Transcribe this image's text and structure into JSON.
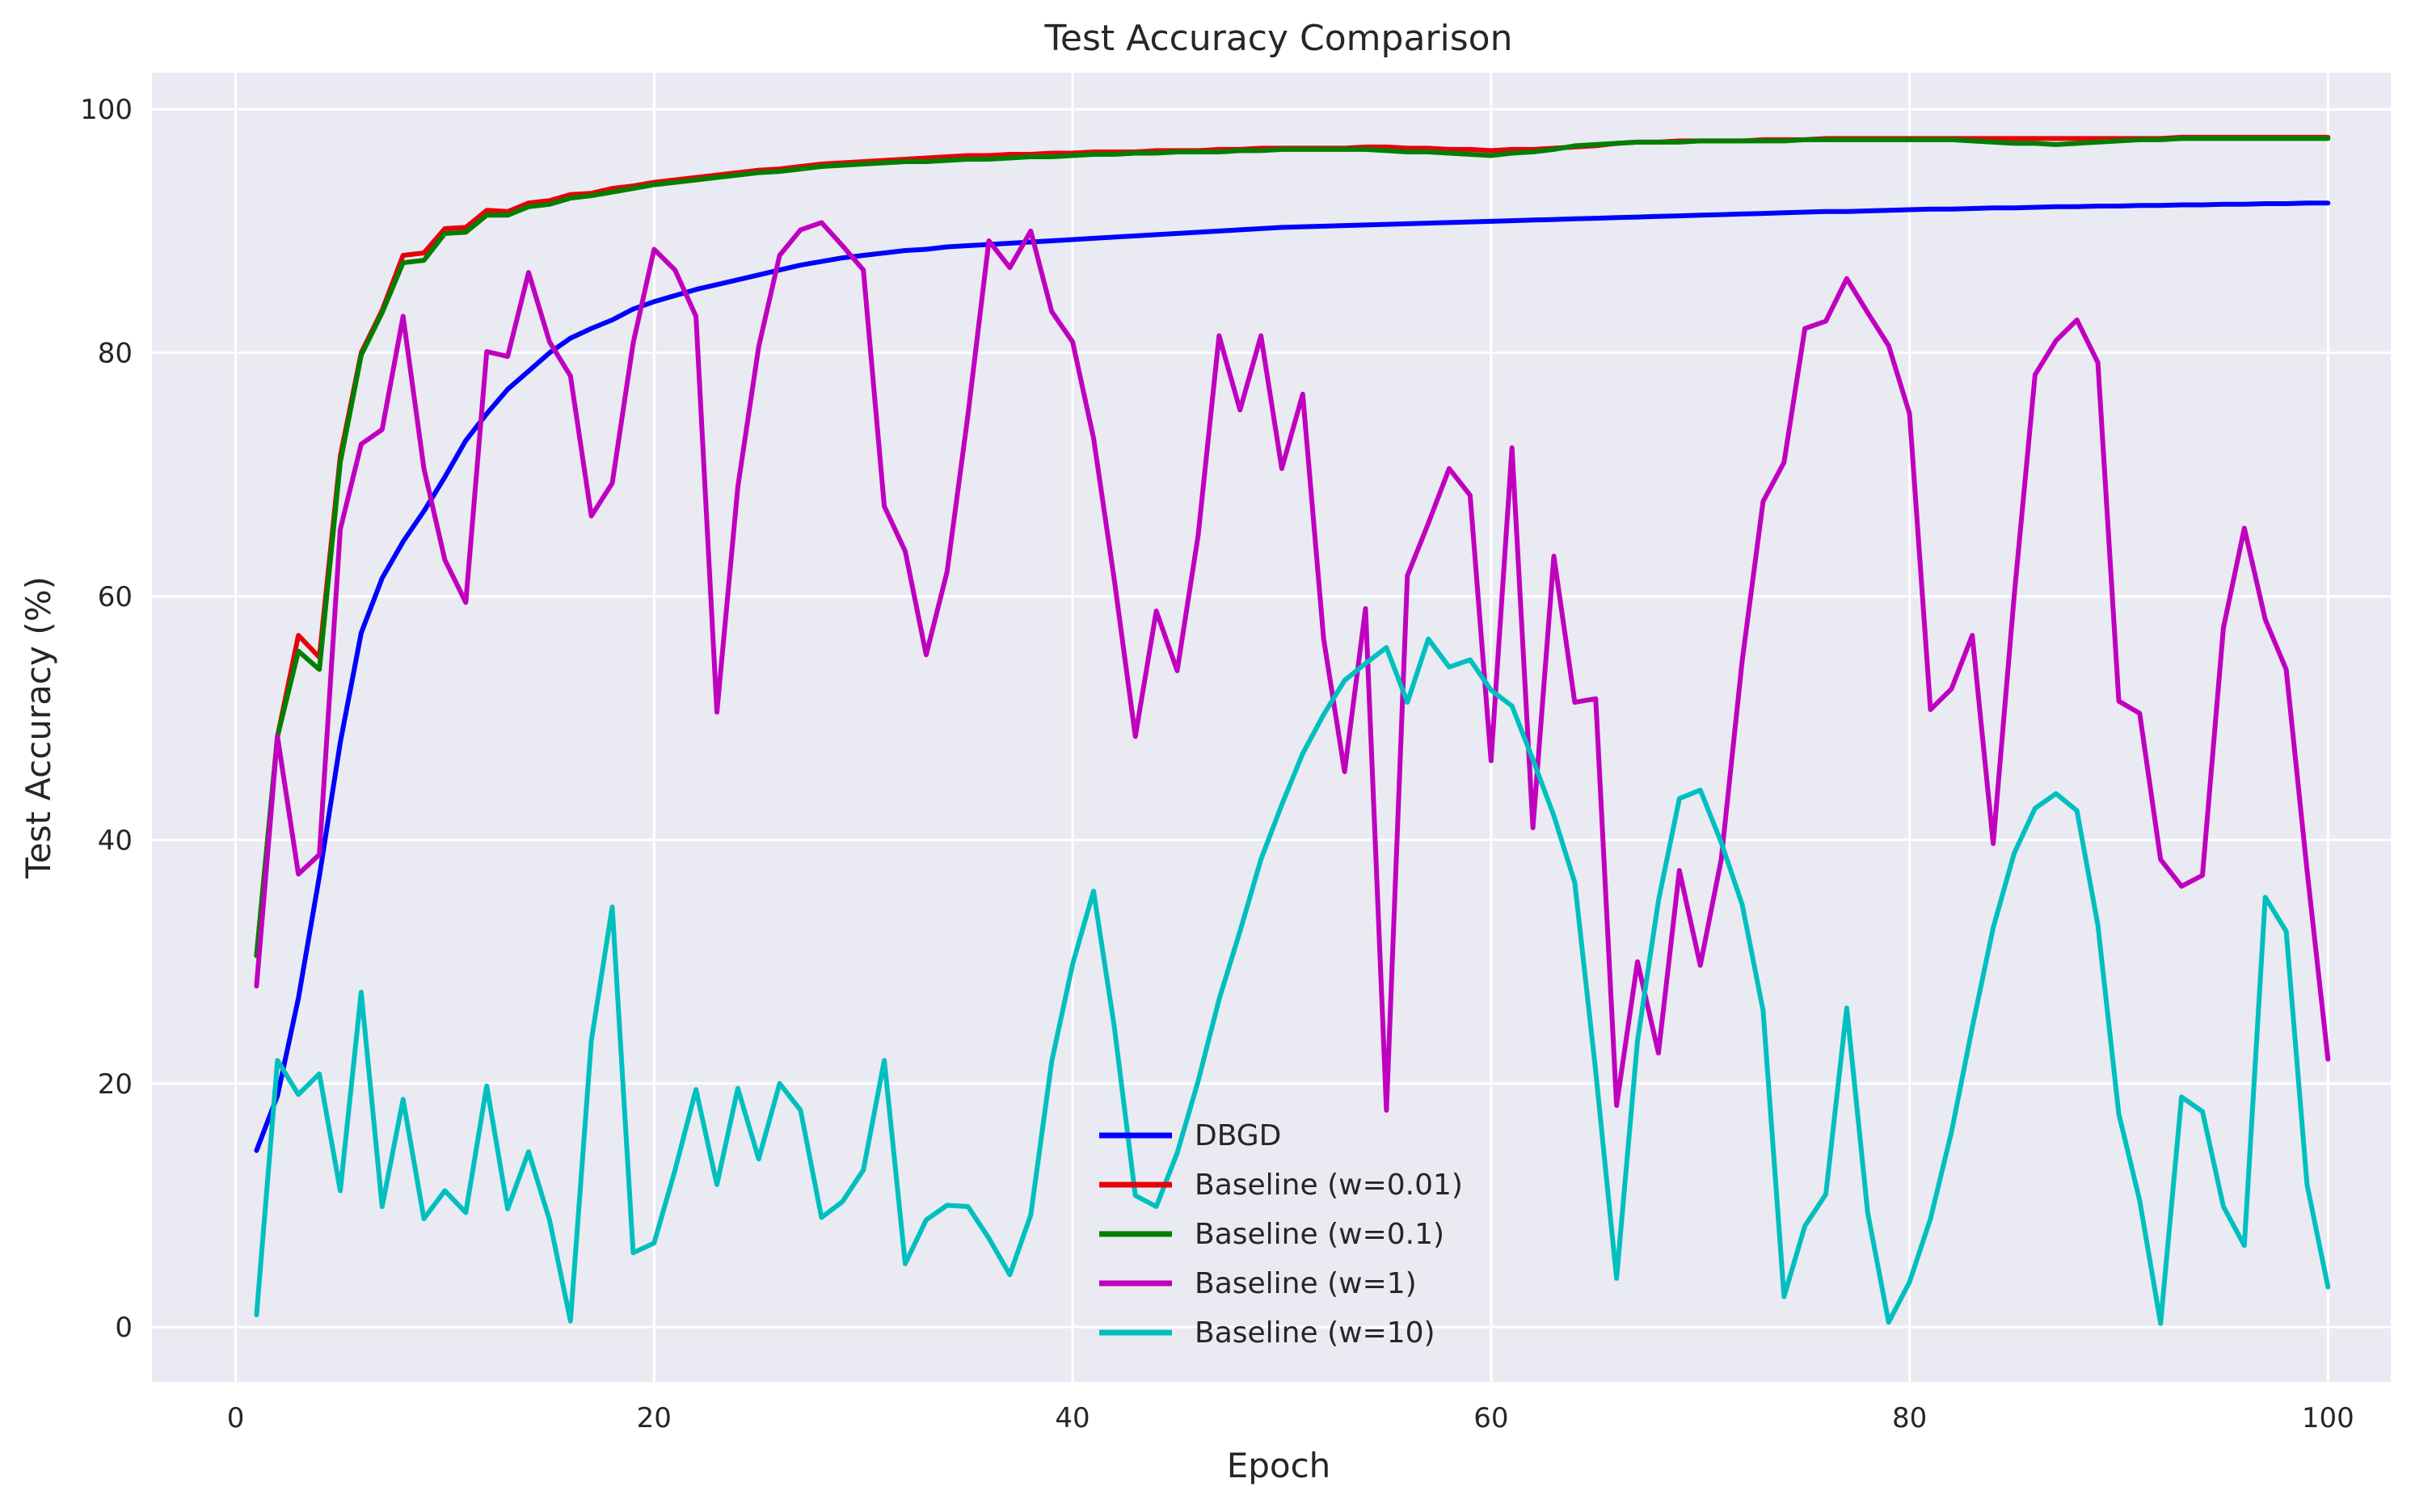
{
  "chart_data": {
    "type": "line",
    "title": "Test Accuracy Comparison",
    "xlabel": "Epoch",
    "ylabel": "Test Accuracy (%)",
    "xlim": [
      -4,
      103
    ],
    "ylim": [
      -4.5,
      103
    ],
    "xticks": [
      0,
      20,
      40,
      60,
      80,
      100
    ],
    "yticks": [
      0,
      20,
      40,
      60,
      80,
      100
    ],
    "xtick_labels": [
      "0",
      "20",
      "40",
      "60",
      "80",
      "100"
    ],
    "ytick_labels": [
      "0",
      "20",
      "40",
      "60",
      "80",
      "100"
    ],
    "grid": true,
    "background": "#EAEAF2",
    "legend_position": "lower center",
    "x": [
      1,
      2,
      3,
      4,
      5,
      6,
      7,
      8,
      9,
      10,
      11,
      12,
      13,
      14,
      15,
      16,
      17,
      18,
      19,
      20,
      21,
      22,
      23,
      24,
      25,
      26,
      27,
      28,
      29,
      30,
      31,
      32,
      33,
      34,
      35,
      36,
      37,
      38,
      39,
      40,
      41,
      42,
      43,
      44,
      45,
      46,
      47,
      48,
      49,
      50,
      51,
      52,
      53,
      54,
      55,
      56,
      57,
      58,
      59,
      60,
      61,
      62,
      63,
      64,
      65,
      66,
      67,
      68,
      69,
      70,
      71,
      72,
      73,
      74,
      75,
      76,
      77,
      78,
      79,
      80,
      81,
      82,
      83,
      84,
      85,
      86,
      87,
      88,
      89,
      90,
      91,
      92,
      93,
      94,
      95,
      96,
      97,
      98,
      99,
      100
    ],
    "series": [
      {
        "name": "DBGD",
        "color": "#0000FF",
        "values": [
          14.5,
          19,
          27,
          37,
          48,
          57,
          61.5,
          64.5,
          67,
          69.8,
          72.8,
          75,
          77,
          78.5,
          80,
          81.2,
          82,
          82.7,
          83.6,
          84.2,
          84.7,
          85.2,
          85.6,
          86,
          86.4,
          86.8,
          87.2,
          87.5,
          87.8,
          88,
          88.2,
          88.4,
          88.5,
          88.7,
          88.8,
          88.9,
          89,
          89.1,
          89.2,
          89.3,
          89.4,
          89.5,
          89.6,
          89.7,
          89.8,
          89.9,
          90,
          90.1,
          90.2,
          90.3,
          90.35,
          90.4,
          90.45,
          90.5,
          90.55,
          90.6,
          90.65,
          90.7,
          90.75,
          90.8,
          90.85,
          90.9,
          90.95,
          91,
          91.05,
          91.1,
          91.15,
          91.2,
          91.25,
          91.3,
          91.35,
          91.4,
          91.45,
          91.5,
          91.55,
          91.6,
          91.6,
          91.65,
          91.7,
          91.75,
          91.8,
          91.8,
          91.85,
          91.9,
          91.9,
          91.95,
          92,
          92,
          92.05,
          92.05,
          92.1,
          92.1,
          92.15,
          92.15,
          92.2,
          92.2,
          92.25,
          92.25,
          92.3,
          92.3
        ]
      },
      {
        "name": "Baseline (w=0.01)",
        "color": "#E8000B",
        "values": [
          30.5,
          48.5,
          56.8,
          55,
          71.5,
          80,
          83.5,
          88,
          88.2,
          90.2,
          90.3,
          91.7,
          91.6,
          92.3,
          92.5,
          93,
          93.1,
          93.5,
          93.7,
          94,
          94.2,
          94.4,
          94.6,
          94.8,
          95,
          95.1,
          95.3,
          95.5,
          95.6,
          95.7,
          95.8,
          95.9,
          96,
          96.1,
          96.2,
          96.2,
          96.3,
          96.3,
          96.4,
          96.4,
          96.5,
          96.5,
          96.5,
          96.6,
          96.6,
          96.6,
          96.7,
          96.7,
          96.8,
          96.8,
          96.8,
          96.8,
          96.8,
          96.9,
          96.9,
          96.8,
          96.8,
          96.7,
          96.7,
          96.6,
          96.7,
          96.7,
          96.8,
          96.9,
          97,
          97.2,
          97.3,
          97.3,
          97.4,
          97.4,
          97.4,
          97.4,
          97.5,
          97.5,
          97.5,
          97.6,
          97.6,
          97.6,
          97.6,
          97.6,
          97.6,
          97.6,
          97.6,
          97.6,
          97.6,
          97.6,
          97.6,
          97.6,
          97.6,
          97.6,
          97.6,
          97.6,
          97.7,
          97.7,
          97.7,
          97.7,
          97.7,
          97.7,
          97.7,
          97.7
        ]
      },
      {
        "name": "Baseline (w=0.1)",
        "color": "#008000",
        "values": [
          30.5,
          48.5,
          55.5,
          54,
          71,
          79.8,
          83.3,
          87.4,
          87.6,
          89.8,
          89.9,
          91.3,
          91.3,
          92,
          92.2,
          92.7,
          92.9,
          93.2,
          93.5,
          93.8,
          94,
          94.2,
          94.4,
          94.6,
          94.8,
          94.9,
          95.1,
          95.3,
          95.4,
          95.5,
          95.6,
          95.7,
          95.7,
          95.8,
          95.9,
          95.9,
          96,
          96.1,
          96.1,
          96.2,
          96.3,
          96.3,
          96.4,
          96.4,
          96.5,
          96.5,
          96.5,
          96.6,
          96.6,
          96.7,
          96.7,
          96.7,
          96.7,
          96.7,
          96.6,
          96.5,
          96.5,
          96.4,
          96.3,
          96.2,
          96.4,
          96.5,
          96.7,
          97,
          97.1,
          97.2,
          97.3,
          97.3,
          97.3,
          97.4,
          97.4,
          97.4,
          97.4,
          97.4,
          97.5,
          97.5,
          97.5,
          97.5,
          97.5,
          97.5,
          97.5,
          97.5,
          97.4,
          97.3,
          97.2,
          97.2,
          97.1,
          97.2,
          97.3,
          97.4,
          97.5,
          97.5,
          97.6,
          97.6,
          97.6,
          97.6,
          97.6,
          97.6,
          97.6,
          97.6
        ]
      },
      {
        "name": "Baseline (w=1)",
        "color": "#BF00BF",
        "values": [
          28,
          48.5,
          37.2,
          38.8,
          65.5,
          72.5,
          73.7,
          83,
          70.5,
          63,
          59.5,
          80.1,
          79.7,
          86.6,
          80.9,
          78.1,
          66.6,
          69.3,
          80.8,
          88.5,
          86.8,
          83,
          50.5,
          69,
          80.5,
          88,
          90.1,
          90.7,
          88.8,
          86.8,
          67.4,
          63.7,
          55.2,
          62,
          74.9,
          89.2,
          87,
          90,
          83.4,
          80.9,
          73,
          61.3,
          48.5,
          58.8,
          53.9,
          65,
          81.4,
          75.3,
          81.4,
          70.5,
          76.6,
          56.5,
          45.6,
          59,
          17.8,
          61.7,
          66,
          70.5,
          68.3,
          46.5,
          72.2,
          41,
          63.3,
          51.3,
          51.6,
          18.2,
          30,
          22.5,
          37.5,
          29.7,
          38.4,
          54.7,
          67.8,
          71,
          82,
          82.6,
          86.1,
          83.3,
          80.6,
          75,
          50.7,
          52.4,
          56.8,
          39.7,
          60,
          78.2,
          81,
          82.7,
          79.2,
          51.4,
          50.4,
          38.4,
          36.2,
          37.1,
          57.4,
          65.6,
          58.1,
          54,
          37.5,
          22
        ]
      },
      {
        "name": "Baseline (w=10)",
        "color": "#00BFBF",
        "values": [
          1,
          21.9,
          19.1,
          20.8,
          11.2,
          27.5,
          9.9,
          18.7,
          8.9,
          11.2,
          9.4,
          19.8,
          9.7,
          14.4,
          8.8,
          0.5,
          23.5,
          34.5,
          6.1,
          6.9,
          12.9,
          19.5,
          11.7,
          19.6,
          13.8,
          20,
          17.8,
          9,
          10.3,
          12.9,
          21.9,
          5.2,
          8.8,
          10,
          9.9,
          7.3,
          4.3,
          9.2,
          21.8,
          29.8,
          35.8,
          24.6,
          10.8,
          9.9,
          14.3,
          20.2,
          26.9,
          32.5,
          38.4,
          42.9,
          47.1,
          50.3,
          53.1,
          54.5,
          55.8,
          51.3,
          56.5,
          54.2,
          54.8,
          52.3,
          51,
          46.6,
          42,
          36.5,
          21,
          4,
          23.5,
          35,
          43.4,
          44.1,
          39.8,
          34.7,
          26,
          2.5,
          8.3,
          10.9,
          26.2,
          9.4,
          0.4,
          3.7,
          8.9,
          16,
          24.6,
          32.8,
          38.9,
          42.6,
          43.8,
          42.4,
          33,
          17.5,
          10.4,
          0.3,
          18.9,
          17.7,
          9.9,
          6.7,
          35.3,
          32.5,
          11.7,
          3.3
        ]
      }
    ]
  }
}
